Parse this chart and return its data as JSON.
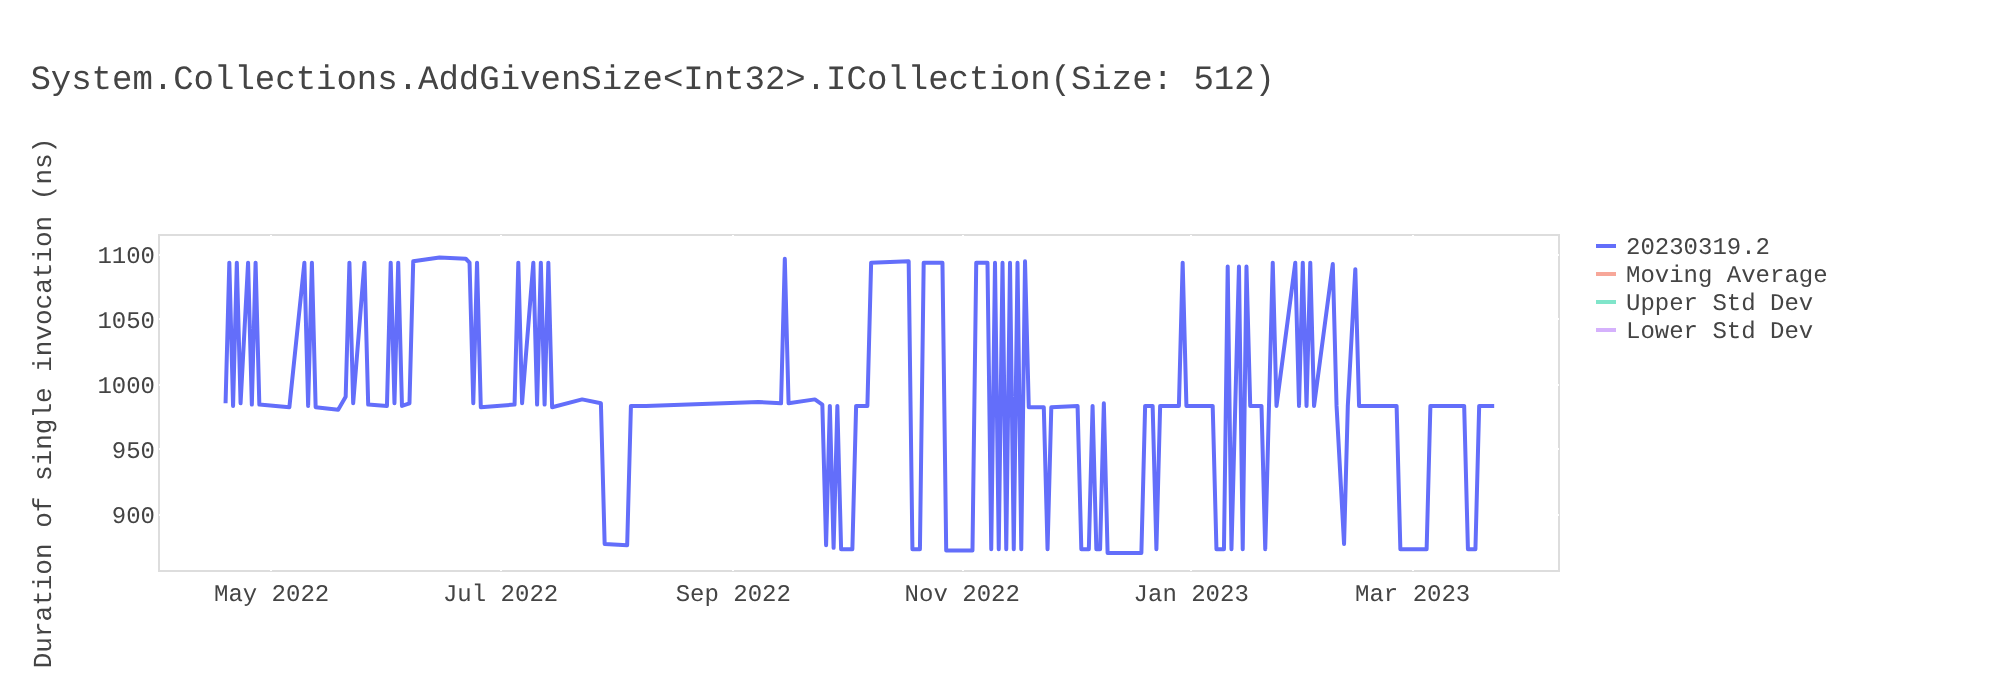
{
  "chart_data": {
    "type": "line",
    "title": "System.Collections.AddGivenSize<Int32>.ICollection(Size: 512)",
    "ylabel": "Duration of single invocation (ns)",
    "x": [
      "2022-04-19",
      "2022-04-20",
      "2022-04-21",
      "2022-04-22",
      "2022-04-23",
      "2022-04-25",
      "2022-04-26",
      "2022-04-27",
      "2022-04-28",
      "2022-05-06",
      "2022-05-10",
      "2022-05-11",
      "2022-05-12",
      "2022-05-13",
      "2022-05-19",
      "2022-05-21",
      "2022-05-22",
      "2022-05-23",
      "2022-05-26",
      "2022-05-27",
      "2022-06-01",
      "2022-06-02",
      "2022-06-03",
      "2022-06-04",
      "2022-06-05",
      "2022-06-07",
      "2022-06-08",
      "2022-06-15",
      "2022-06-22",
      "2022-06-23",
      "2022-06-24",
      "2022-06-25",
      "2022-06-26",
      "2022-07-05",
      "2022-07-06",
      "2022-07-07",
      "2022-07-10",
      "2022-07-11",
      "2022-07-12",
      "2022-07-13",
      "2022-07-14",
      "2022-07-15",
      "2022-07-23",
      "2022-07-28",
      "2022-07-29",
      "2022-08-04",
      "2022-08-05",
      "2022-08-09",
      "2022-09-08",
      "2022-09-14",
      "2022-09-15",
      "2022-09-16",
      "2022-09-23",
      "2022-09-25",
      "2022-09-26",
      "2022-09-27",
      "2022-09-28",
      "2022-09-29",
      "2022-09-30",
      "2022-10-03",
      "2022-10-04",
      "2022-10-07",
      "2022-10-08",
      "2022-10-18",
      "2022-10-19",
      "2022-10-21",
      "2022-10-22",
      "2022-10-27",
      "2022-10-28",
      "2022-11-04",
      "2022-11-05",
      "2022-11-08",
      "2022-11-09",
      "2022-11-10",
      "2022-11-11",
      "2022-11-12",
      "2022-11-13",
      "2022-11-14",
      "2022-11-15",
      "2022-11-16",
      "2022-11-17",
      "2022-11-18",
      "2022-11-19",
      "2022-11-23",
      "2022-11-24",
      "2022-11-25",
      "2022-12-02",
      "2022-12-03",
      "2022-12-05",
      "2022-12-06",
      "2022-12-07",
      "2022-12-08",
      "2022-12-09",
      "2022-12-10",
      "2022-12-19",
      "2022-12-20",
      "2022-12-22",
      "2022-12-23",
      "2022-12-24",
      "2022-12-29",
      "2022-12-30",
      "2022-12-31",
      "2023-01-07",
      "2023-01-08",
      "2023-01-10",
      "2023-01-11",
      "2023-01-12",
      "2023-01-14",
      "2023-01-15",
      "2023-01-16",
      "2023-01-17",
      "2023-01-20",
      "2023-01-21",
      "2023-01-22",
      "2023-01-23",
      "2023-01-24",
      "2023-01-29",
      "2023-01-30",
      "2023-01-31",
      "2023-02-01",
      "2023-02-02",
      "2023-02-03",
      "2023-02-08",
      "2023-02-09",
      "2023-02-11",
      "2023-02-12",
      "2023-02-14",
      "2023-02-15",
      "2023-02-25",
      "2023-02-26",
      "2023-03-05",
      "2023-03-06",
      "2023-03-15",
      "2023-03-16",
      "2023-03-18",
      "2023-03-19",
      "2023-03-23"
    ],
    "series": [
      {
        "name": "20230319.2",
        "color": "#636efa",
        "values": [
          985,
          1093,
          983,
          1093,
          985,
          1093,
          984,
          1093,
          984,
          982,
          1093,
          983,
          1093,
          982,
          980,
          990,
          1093,
          985,
          1093,
          984,
          983,
          1093,
          985,
          1093,
          983,
          985,
          1094,
          1097,
          1096,
          1093,
          985,
          1093,
          982,
          984,
          1093,
          985,
          1093,
          984,
          1093,
          984,
          1093,
          982,
          988,
          985,
          877,
          876,
          983,
          983,
          986,
          985,
          1096,
          985,
          988,
          984,
          876,
          983,
          874,
          983,
          873,
          873,
          983,
          983,
          1093,
          1094,
          873,
          873,
          1093,
          1093,
          872,
          872,
          1093,
          1093,
          873,
          1093,
          873,
          1093,
          873,
          1093,
          873,
          1093,
          873,
          1094,
          982,
          982,
          873,
          982,
          983,
          873,
          873,
          983,
          873,
          873,
          985,
          870,
          870,
          983,
          983,
          873,
          983,
          983,
          1093,
          983,
          983,
          873,
          873,
          1090,
          873,
          1090,
          873,
          1090,
          983,
          983,
          873,
          983,
          1093,
          983,
          1093,
          983,
          1093,
          983,
          1093,
          983,
          1092,
          983,
          877,
          983,
          1088,
          983,
          983,
          873,
          873,
          983,
          983,
          873,
          873,
          983,
          983
        ]
      },
      {
        "name": "Moving Average",
        "color": "#f7a799",
        "values": [
          null,
          null,
          null,
          null,
          null,
          null,
          null,
          null,
          null,
          null,
          null,
          null,
          null,
          null,
          null,
          null,
          null,
          null,
          null,
          null,
          null,
          null,
          null,
          null,
          null,
          null,
          null,
          null,
          null,
          null,
          null,
          null,
          null,
          null,
          null,
          null,
          null,
          null,
          null,
          null,
          null,
          null,
          null,
          null,
          null,
          null,
          null,
          null,
          null,
          null,
          null,
          null,
          null,
          null,
          null,
          null,
          null,
          null,
          null,
          null,
          null,
          null,
          null,
          null,
          null,
          null,
          null,
          null,
          null,
          null,
          null,
          null,
          null,
          null,
          null,
          null,
          null,
          null,
          null,
          null,
          null,
          null,
          null,
          null,
          null,
          null,
          null,
          null,
          null,
          null,
          null,
          null,
          null,
          null,
          null,
          null,
          null,
          null,
          null,
          null,
          null,
          null,
          null,
          null,
          null,
          null,
          null,
          null,
          null,
          null,
          null,
          null,
          null,
          null,
          null,
          null,
          null,
          null,
          null,
          null,
          null,
          null,
          null,
          null,
          null,
          null,
          null,
          null,
          null,
          null,
          null,
          null,
          null,
          null,
          null,
          null,
          null
        ]
      },
      {
        "name": "Upper Std Dev",
        "color": "#80e5ca",
        "values": [
          null,
          null,
          null,
          null,
          null,
          null,
          null,
          null,
          null,
          null,
          null,
          null,
          null,
          null,
          null,
          null,
          null,
          null,
          null,
          null,
          null,
          null,
          null,
          null,
          null,
          null,
          null,
          null,
          null,
          null,
          null,
          null,
          null,
          null,
          null,
          null,
          null,
          null,
          null,
          null,
          null,
          null,
          null,
          null,
          null,
          null,
          null,
          null,
          null,
          null,
          null,
          null,
          null,
          null,
          null,
          null,
          null,
          null,
          null,
          null,
          null,
          null,
          null,
          null,
          null,
          null,
          null,
          null,
          null,
          null,
          null,
          null,
          null,
          null,
          null,
          null,
          null,
          null,
          null,
          null,
          null,
          null,
          null,
          null,
          null,
          null,
          null,
          null,
          null,
          null,
          null,
          null,
          null,
          null,
          null,
          null,
          null,
          null,
          null,
          null,
          null,
          null,
          null,
          null,
          null,
          null,
          null,
          null,
          null,
          null,
          null,
          null,
          null,
          null,
          null,
          null,
          null,
          null,
          null,
          null,
          null,
          null,
          null,
          null,
          null,
          null,
          null,
          null,
          null,
          null,
          null,
          null,
          null,
          null,
          null,
          null,
          null
        ]
      },
      {
        "name": "Lower Std Dev",
        "color": "#d5b1fc",
        "values": [
          null,
          null,
          null,
          null,
          null,
          null,
          null,
          null,
          null,
          null,
          null,
          null,
          null,
          null,
          null,
          null,
          null,
          null,
          null,
          null,
          null,
          null,
          null,
          null,
          null,
          null,
          null,
          null,
          null,
          null,
          null,
          null,
          null,
          null,
          null,
          null,
          null,
          null,
          null,
          null,
          null,
          null,
          null,
          null,
          null,
          null,
          null,
          null,
          null,
          null,
          null,
          null,
          null,
          null,
          null,
          null,
          null,
          null,
          null,
          null,
          null,
          null,
          null,
          null,
          null,
          null,
          null,
          null,
          null,
          null,
          null,
          null,
          null,
          null,
          null,
          null,
          null,
          null,
          null,
          null,
          null,
          null,
          null,
          null,
          null,
          null,
          null,
          null,
          null,
          null,
          null,
          null,
          null,
          null,
          null,
          null,
          null,
          null,
          null,
          null,
          null,
          null,
          null,
          null,
          null,
          null,
          null,
          null,
          null,
          null,
          null,
          null,
          null,
          null,
          null,
          null,
          null,
          null,
          null,
          null,
          null,
          null,
          null,
          null,
          null,
          null,
          null,
          null,
          null,
          null,
          null,
          null,
          null,
          null,
          null,
          null,
          null
        ]
      }
    ],
    "xlim": [
      "2022-04-01",
      "2023-04-09"
    ],
    "xticks": [
      {
        "value": "2022-05-01",
        "label": "May 2022"
      },
      {
        "value": "2022-07-01",
        "label": "Jul 2022"
      },
      {
        "value": "2022-09-01",
        "label": "Sep 2022"
      },
      {
        "value": "2022-11-01",
        "label": "Nov 2022"
      },
      {
        "value": "2023-01-01",
        "label": "Jan 2023"
      },
      {
        "value": "2023-03-01",
        "label": "Mar 2023"
      }
    ],
    "ylim": [
      857,
      1115
    ],
    "yticks": [
      900,
      950,
      1000,
      1050,
      1100
    ],
    "grid": true,
    "legend": "top right",
    "line_style": "solid"
  }
}
